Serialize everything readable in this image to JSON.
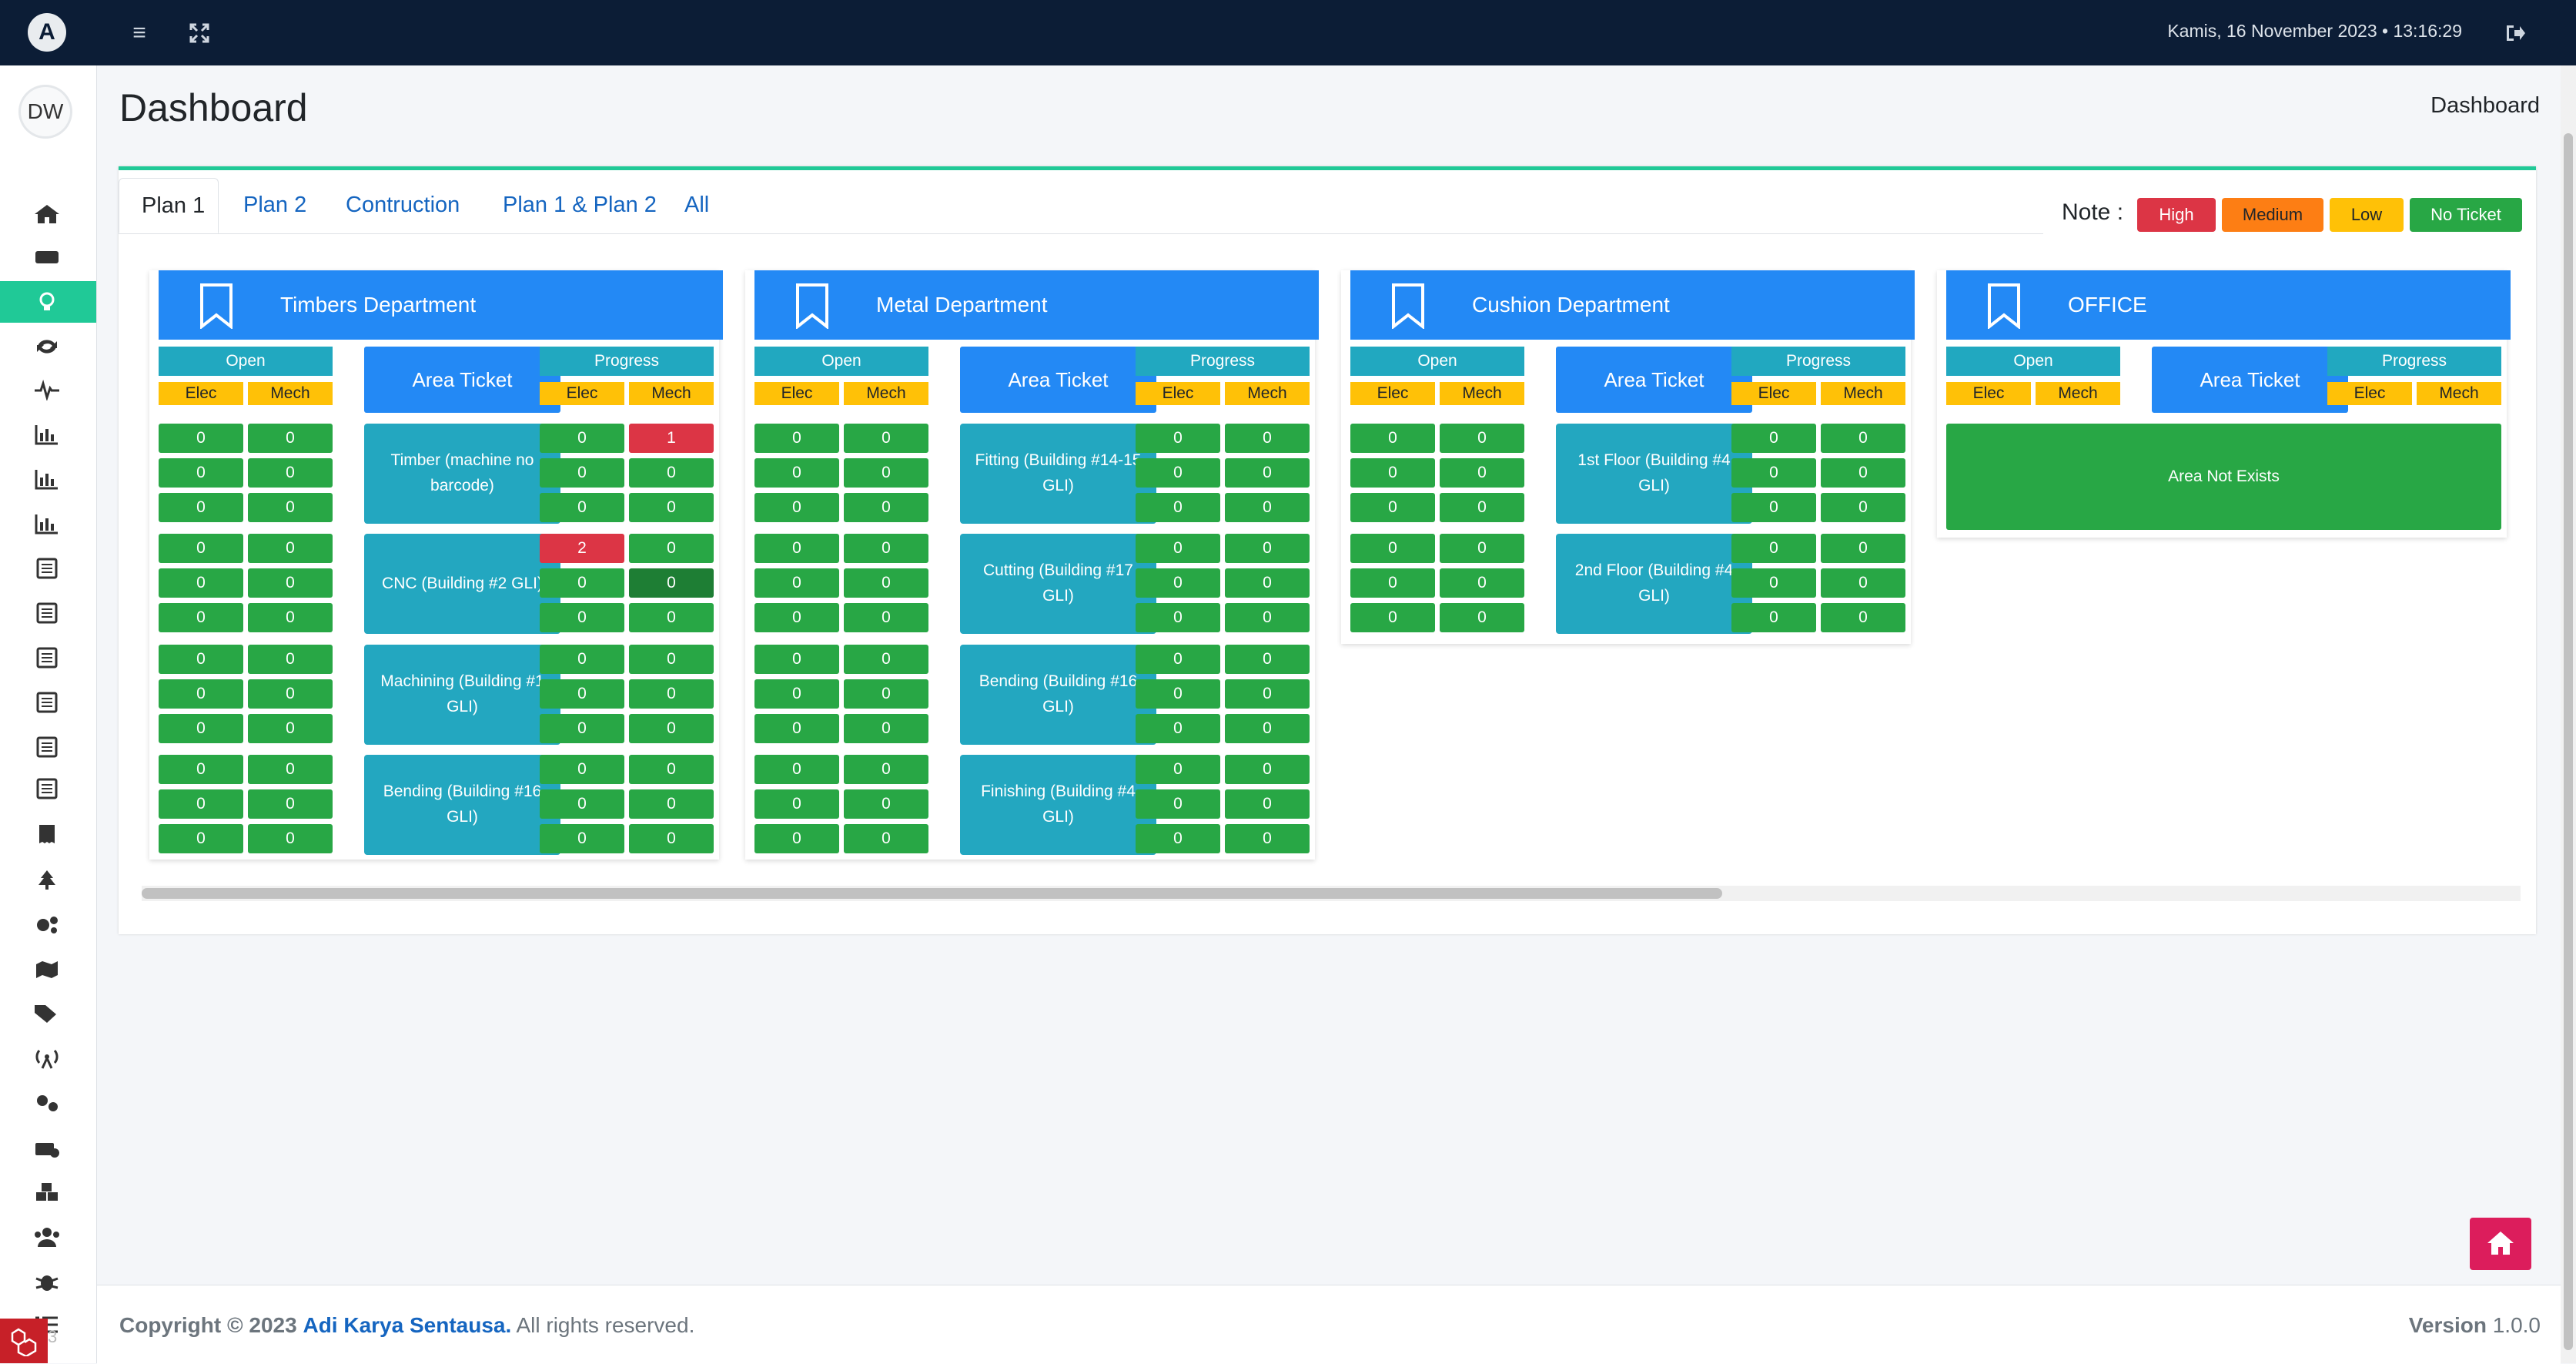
{
  "topbar": {
    "logo": "A",
    "datetime": "Kamis, 16 November 2023 • 13:16:29"
  },
  "user": {
    "initials": "DW"
  },
  "sidebar_num": "3",
  "page": {
    "title": "Dashboard",
    "breadcrumb": "Dashboard"
  },
  "tabs": [
    "Plan 1",
    "Plan 2",
    "Contruction",
    "Plan 1 & Plan 2",
    "All"
  ],
  "note": {
    "label": "Note :",
    "items": [
      {
        "label": "High",
        "color": "#dc3545"
      },
      {
        "label": "Medium",
        "color": "#fd7e14"
      },
      {
        "label": "Low",
        "color": "#ffc107"
      },
      {
        "label": "No Ticket",
        "color": "#28a745"
      }
    ]
  },
  "labels": {
    "open": "Open",
    "area_ticket": "Area Ticket",
    "progress": "Progress",
    "elec": "Elec",
    "mech": "Mech"
  },
  "departments": [
    {
      "name": "Timbers Department",
      "areas": [
        {
          "name": "Timber (machine no barcode)",
          "open": [
            [
              "0",
              "0"
            ],
            [
              "0",
              "0"
            ],
            [
              "0",
              "0"
            ]
          ],
          "progress": [
            [
              "0",
              "1"
            ],
            [
              "0",
              "0"
            ],
            [
              "0",
              "0"
            ]
          ]
        },
        {
          "name": "CNC (Building #2 GLI)",
          "open": [
            [
              "0",
              "0"
            ],
            [
              "0",
              "0"
            ],
            [
              "0",
              "0"
            ]
          ],
          "progress": [
            [
              "2",
              "0"
            ],
            [
              "0",
              "0"
            ],
            [
              "0",
              "0"
            ]
          ]
        },
        {
          "name": "Machining (Building #1 GLI)",
          "open": [
            [
              "0",
              "0"
            ],
            [
              "0",
              "0"
            ],
            [
              "0",
              "0"
            ]
          ],
          "progress": [
            [
              "0",
              "0"
            ],
            [
              "0",
              "0"
            ],
            [
              "0",
              "0"
            ]
          ]
        },
        {
          "name": "Bending (Building #16 GLI)",
          "open": [
            [
              "0",
              "0"
            ],
            [
              "0",
              "0"
            ],
            [
              "0",
              "0"
            ]
          ],
          "progress": [
            [
              "0",
              "0"
            ],
            [
              "0",
              "0"
            ],
            [
              "0",
              "0"
            ]
          ]
        }
      ]
    },
    {
      "name": "Metal Department",
      "areas": [
        {
          "name": "Fitting (Building #14-15 GLI)",
          "open": [
            [
              "0",
              "0"
            ],
            [
              "0",
              "0"
            ],
            [
              "0",
              "0"
            ]
          ],
          "progress": [
            [
              "0",
              "0"
            ],
            [
              "0",
              "0"
            ],
            [
              "0",
              "0"
            ]
          ]
        },
        {
          "name": "Cutting (Building #17 GLI)",
          "open": [
            [
              "0",
              "0"
            ],
            [
              "0",
              "0"
            ],
            [
              "0",
              "0"
            ]
          ],
          "progress": [
            [
              "0",
              "0"
            ],
            [
              "0",
              "0"
            ],
            [
              "0",
              "0"
            ]
          ]
        },
        {
          "name": "Bending (Building #16 GLI)",
          "open": [
            [
              "0",
              "0"
            ],
            [
              "0",
              "0"
            ],
            [
              "0",
              "0"
            ]
          ],
          "progress": [
            [
              "0",
              "0"
            ],
            [
              "0",
              "0"
            ],
            [
              "0",
              "0"
            ]
          ]
        },
        {
          "name": "Finishing (Building #4 GLI)",
          "open": [
            [
              "0",
              "0"
            ],
            [
              "0",
              "0"
            ],
            [
              "0",
              "0"
            ]
          ],
          "progress": [
            [
              "0",
              "0"
            ],
            [
              "0",
              "0"
            ],
            [
              "0",
              "0"
            ]
          ]
        }
      ]
    },
    {
      "name": "Cushion Department",
      "areas": [
        {
          "name": "1st Floor (Building #4 GLI)",
          "open": [
            [
              "0",
              "0"
            ],
            [
              "0",
              "0"
            ],
            [
              "0",
              "0"
            ]
          ],
          "progress": [
            [
              "0",
              "0"
            ],
            [
              "0",
              "0"
            ],
            [
              "0",
              "0"
            ]
          ]
        },
        {
          "name": "2nd Floor (Building #4 GLI)",
          "open": [
            [
              "0",
              "0"
            ],
            [
              "0",
              "0"
            ],
            [
              "0",
              "0"
            ]
          ],
          "progress": [
            [
              "0",
              "0"
            ],
            [
              "0",
              "0"
            ],
            [
              "0",
              "0"
            ]
          ]
        }
      ]
    },
    {
      "name": "OFFICE",
      "areas": [],
      "empty_text": "Area Not Exists"
    }
  ],
  "footer": {
    "copyright": "Copyright © 2023",
    "company": "Adi Karya Sentausa.",
    "rights": " All rights reserved.",
    "version_label": "Version",
    "version": "1.0.0"
  }
}
